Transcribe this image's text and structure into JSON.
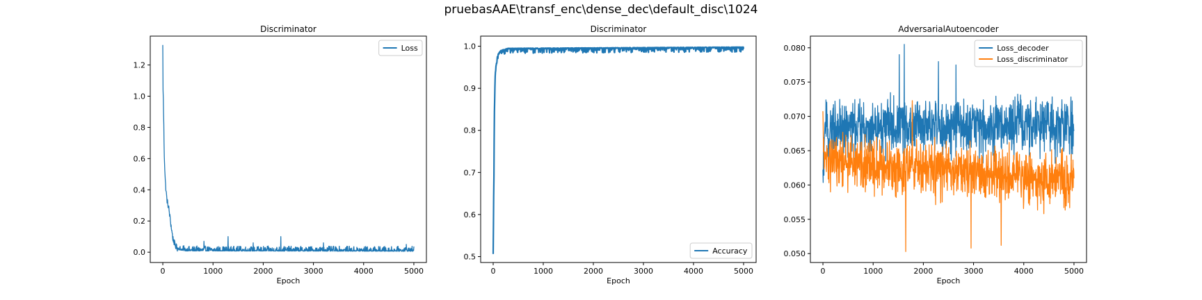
{
  "figure": {
    "title": "pruebasAAE\\transf_enc\\dense_dec\\default_disc\\1024"
  },
  "chart_data": [
    {
      "type": "line",
      "title": "Discriminator",
      "xlabel": "Epoch",
      "ylabel": "",
      "xlim": [
        -250,
        5250
      ],
      "ylim": [
        -0.066,
        1.385
      ],
      "xticks": [
        0,
        1000,
        2000,
        3000,
        4000,
        5000
      ],
      "yticks": [
        0.0,
        0.2,
        0.4,
        0.6,
        0.8,
        1.0,
        1.2
      ],
      "ytick_labels": [
        "0.0",
        "0.2",
        "0.4",
        "0.6",
        "0.8",
        "1.0",
        "1.2"
      ],
      "legend": {
        "loc": "upper right"
      },
      "series": [
        {
          "name": "Loss",
          "color": "#1f77b4",
          "profile": [
            [
              0,
              1.32
            ],
            [
              5,
              1.05
            ],
            [
              15,
              0.9
            ],
            [
              30,
              0.62
            ],
            [
              50,
              0.45
            ],
            [
              80,
              0.34
            ],
            [
              120,
              0.28
            ],
            [
              160,
              0.18
            ],
            [
              200,
              0.09
            ],
            [
              250,
              0.04
            ],
            [
              320,
              0.015
            ],
            [
              450,
              0.008
            ],
            [
              5000,
              0.006
            ]
          ],
          "noise": 0.02,
          "spikes": [
            [
              1300,
              0.1
            ],
            [
              2350,
              0.1
            ],
            [
              820,
              0.07
            ],
            [
              1800,
              0.06
            ],
            [
              3200,
              0.06
            ],
            [
              4850,
              0.05
            ]
          ]
        }
      ]
    },
    {
      "type": "line",
      "title": "Discriminator",
      "xlabel": "Epoch",
      "ylabel": "",
      "xlim": [
        -250,
        5250
      ],
      "ylim": [
        0.486,
        1.024
      ],
      "xticks": [
        0,
        1000,
        2000,
        3000,
        4000,
        5000
      ],
      "yticks": [
        0.5,
        0.6,
        0.7,
        0.8,
        0.9,
        1.0
      ],
      "ytick_labels": [
        "0.5",
        "0.6",
        "0.7",
        "0.8",
        "0.9",
        "1.0"
      ],
      "legend": {
        "loc": "lower right"
      },
      "series": [
        {
          "name": "Accuracy",
          "color": "#1f77b4",
          "profile": [
            [
              0,
              0.51
            ],
            [
              8,
              0.62
            ],
            [
              15,
              0.7
            ],
            [
              25,
              0.85
            ],
            [
              40,
              0.93
            ],
            [
              60,
              0.96
            ],
            [
              90,
              0.98
            ],
            [
              150,
              0.99
            ],
            [
              300,
              0.995
            ],
            [
              5000,
              0.998
            ]
          ],
          "noise": 0.006,
          "spikes": []
        }
      ]
    },
    {
      "type": "line",
      "title": "AdversarialAutoencoder",
      "xlabel": "Epoch",
      "ylabel": "",
      "xlim": [
        -250,
        5250
      ],
      "ylim": [
        0.0487,
        0.0817
      ],
      "xticks": [
        0,
        1000,
        2000,
        3000,
        4000,
        5000
      ],
      "yticks": [
        0.05,
        0.055,
        0.06,
        0.065,
        0.07,
        0.075,
        0.08
      ],
      "ytick_labels": [
        "0.050",
        "0.055",
        "0.060",
        "0.065",
        "0.070",
        "0.075",
        "0.080"
      ],
      "legend": {
        "loc": "upper right"
      },
      "series": [
        {
          "name": "Loss_decoder",
          "color": "#1f77b4",
          "profile": [
            [
              0,
              0.0595
            ],
            [
              20,
              0.0665
            ],
            [
              100,
              0.0683
            ],
            [
              5000,
              0.0688
            ]
          ],
          "noise": 0.0035,
          "min": 0.0595,
          "max": 0.0805,
          "spikes": [
            [
              1620,
              0.0805
            ],
            [
              1520,
              0.079
            ],
            [
              2300,
              0.078
            ],
            [
              2650,
              0.0775
            ]
          ]
        },
        {
          "name": "Loss_discriminator",
          "color": "#ff7f0e",
          "profile": [
            [
              0,
              0.068
            ],
            [
              20,
              0.0635
            ],
            [
              5000,
              0.0605
            ]
          ],
          "noise": 0.0033,
          "min": 0.0503,
          "max": 0.0725,
          "spikes": [
            [
              1650,
              0.0503
            ],
            [
              2950,
              0.0508
            ],
            [
              3550,
              0.0512
            ],
            [
              1780,
              0.0723
            ]
          ]
        }
      ]
    }
  ]
}
